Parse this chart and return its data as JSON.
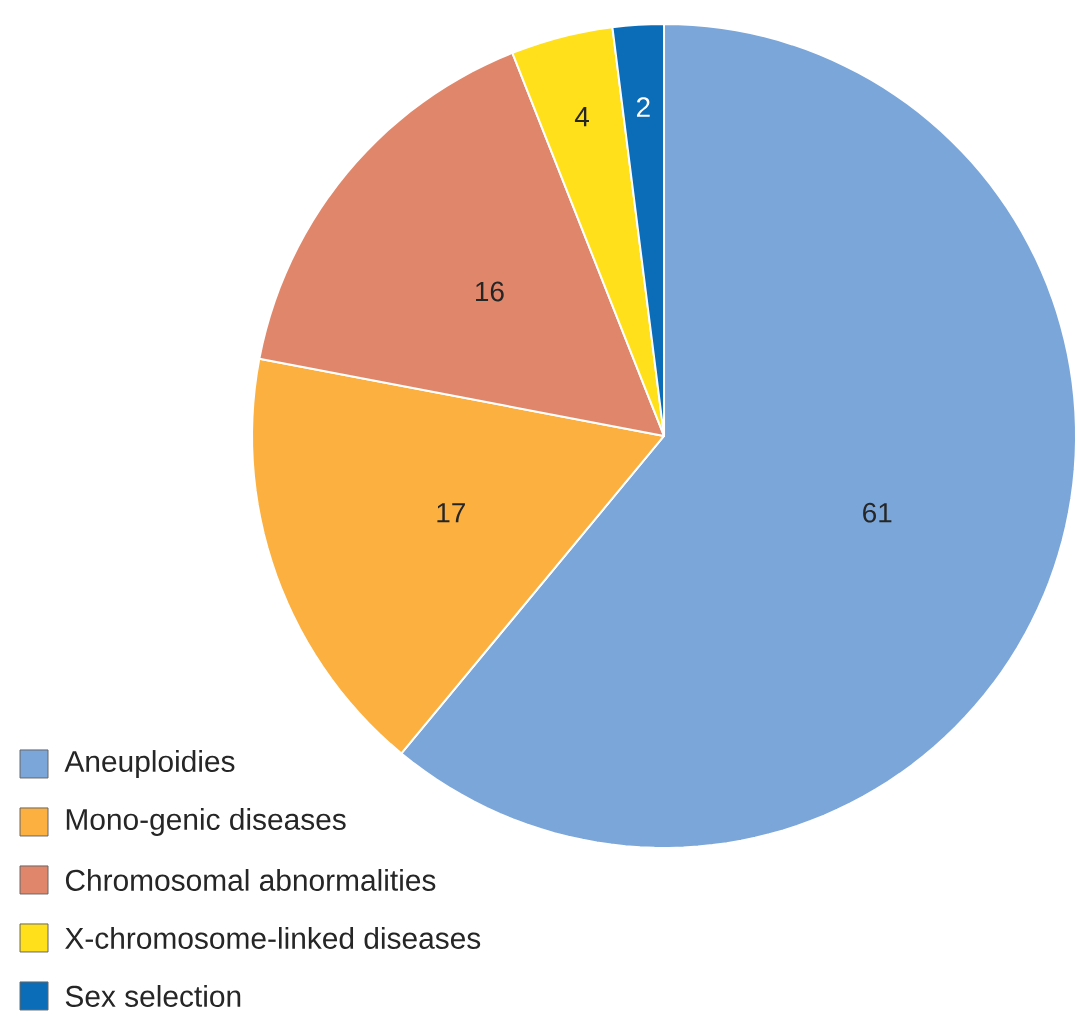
{
  "chart_data": {
    "type": "pie",
    "categories": [
      "Aneuploidies",
      "Mono-genic diseases",
      "Chromosomal abnormalities",
      "X-chromosome-linked diseases",
      "Sex selection"
    ],
    "values": [
      61,
      17,
      16,
      4,
      2
    ],
    "colors": [
      "#7ba6d9",
      "#fbb040",
      "#e0876b",
      "#ffe01a",
      "#0b6db7"
    ],
    "data_labels": true,
    "value_labels": [
      "61",
      "17",
      "16",
      "4",
      "2"
    ],
    "legend": "bottom left"
  }
}
